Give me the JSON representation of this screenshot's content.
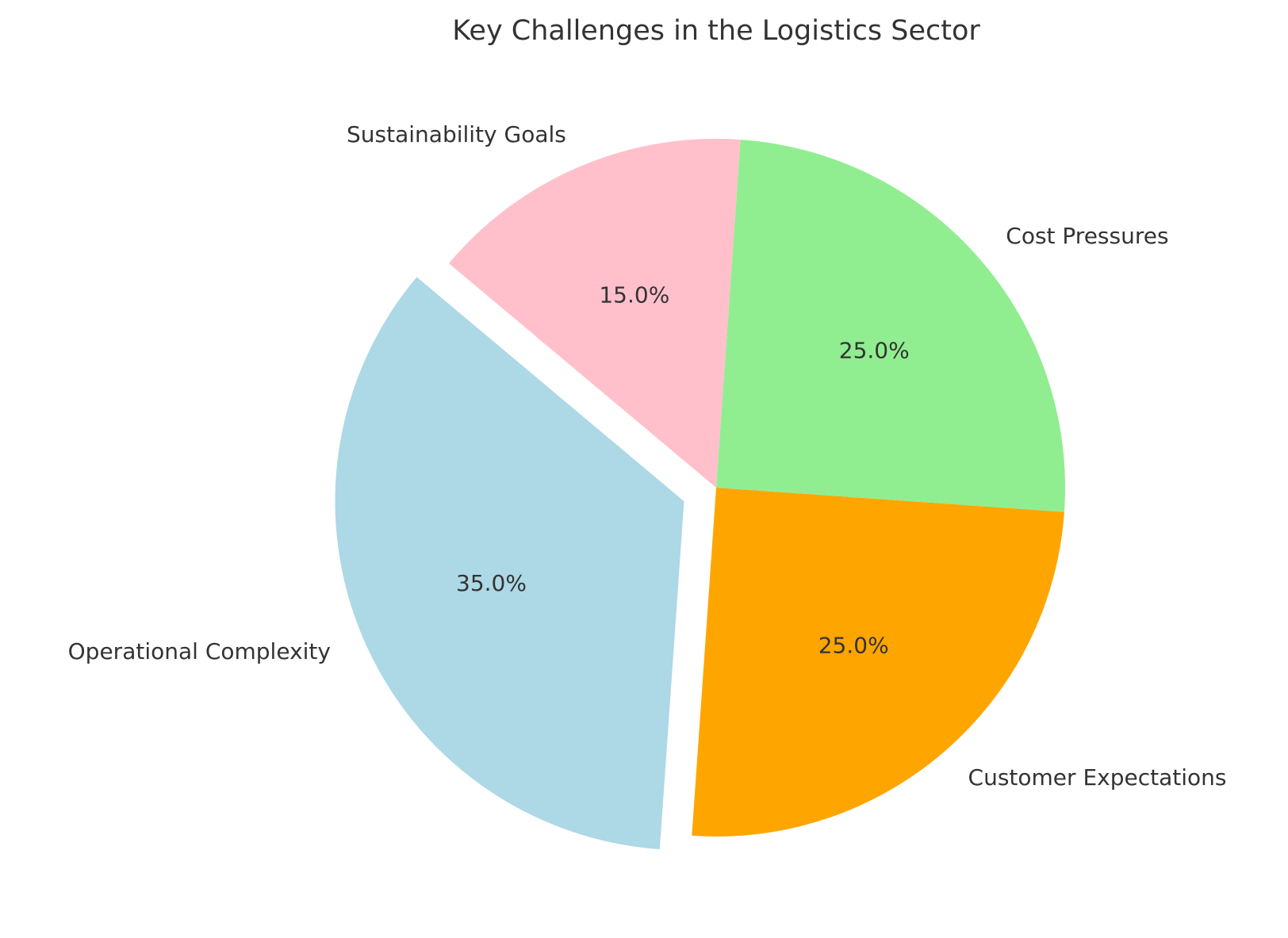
{
  "chart_data": {
    "type": "pie",
    "title": "Key Challenges in the Logistics Sector",
    "start_angle_deg": 140,
    "direction": "counterclockwise",
    "slices": [
      {
        "label": "Operational Complexity",
        "value": 35,
        "pct_label": "35.0%",
        "color": "#add8e6",
        "explode": 0.1
      },
      {
        "label": "Customer Expectations",
        "value": 25,
        "pct_label": "25.0%",
        "color": "#ffa500",
        "explode": 0
      },
      {
        "label": "Cost Pressures",
        "value": 25,
        "pct_label": "25.0%",
        "color": "#90ee90",
        "explode": 0
      },
      {
        "label": "Sustainability Goals",
        "value": 15,
        "pct_label": "15.0%",
        "color": "#ffc0cb",
        "explode": 0
      }
    ]
  }
}
